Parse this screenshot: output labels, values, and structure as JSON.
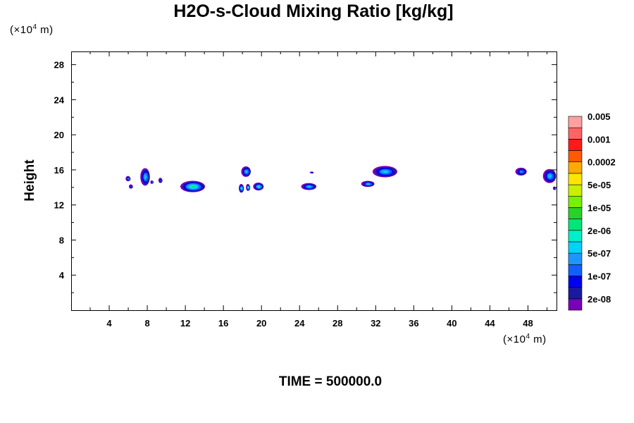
{
  "chart_data": {
    "type": "heatmap",
    "title": "H2O-s-Cloud Mixing Ratio [kg/kg]",
    "ylabel": "Height",
    "y_unit": "(×10⁴ m)",
    "x_unit": "(×10⁴ m)",
    "xlim": [
      0,
      51
    ],
    "ylim": [
      0,
      29.5
    ],
    "x_ticks": [
      4,
      8,
      12,
      16,
      20,
      24,
      28,
      32,
      36,
      40,
      44,
      48
    ],
    "y_ticks": [
      4,
      8,
      12,
      16,
      20,
      24,
      28
    ],
    "colorbar": {
      "levels": [
        "2e-08",
        "1e-07",
        "5e-07",
        "2e-06",
        "1e-05",
        "5e-05",
        "0.0002",
        "0.001",
        "0.005"
      ],
      "colors": [
        "#7a00b4",
        "#1a1aa0",
        "#0000f0",
        "#1060ff",
        "#1e96ff",
        "#00d2ff",
        "#00f0c8",
        "#00e678",
        "#28d228",
        "#78f000",
        "#c8f000",
        "#ffe600",
        "#ffaa00",
        "#ff5a00",
        "#ff1a1a",
        "#ff6464",
        "#ffa0a0"
      ]
    },
    "clouds": [
      {
        "x": 6.0,
        "y": 15.0,
        "w": 0.5,
        "h": 0.6,
        "peak": 4
      },
      {
        "x": 6.3,
        "y": 14.1,
        "w": 0.4,
        "h": 0.5,
        "peak": 3
      },
      {
        "x": 7.8,
        "y": 15.2,
        "w": 1.0,
        "h": 2.0,
        "peak": 5
      },
      {
        "x": 8.5,
        "y": 14.6,
        "w": 0.3,
        "h": 0.4,
        "peak": 3
      },
      {
        "x": 9.4,
        "y": 14.8,
        "w": 0.4,
        "h": 0.6,
        "peak": 3
      },
      {
        "x": 12.8,
        "y": 14.1,
        "w": 2.6,
        "h": 1.3,
        "peak": 7
      },
      {
        "x": 18.4,
        "y": 15.8,
        "w": 1.0,
        "h": 1.2,
        "peak": 5
      },
      {
        "x": 17.9,
        "y": 13.9,
        "w": 0.5,
        "h": 1.0,
        "peak": 6
      },
      {
        "x": 18.6,
        "y": 14.0,
        "w": 0.4,
        "h": 0.8,
        "peak": 6
      },
      {
        "x": 19.7,
        "y": 14.1,
        "w": 1.1,
        "h": 0.9,
        "peak": 6
      },
      {
        "x": 25.0,
        "y": 14.1,
        "w": 1.6,
        "h": 0.8,
        "peak": 5
      },
      {
        "x": 25.3,
        "y": 15.7,
        "w": 0.4,
        "h": 0.2,
        "peak": 2
      },
      {
        "x": 31.2,
        "y": 14.4,
        "w": 1.4,
        "h": 0.7,
        "peak": 5
      },
      {
        "x": 33.0,
        "y": 15.8,
        "w": 2.6,
        "h": 1.3,
        "peak": 5
      },
      {
        "x": 47.3,
        "y": 15.8,
        "w": 1.2,
        "h": 0.9,
        "peak": 4
      },
      {
        "x": 50.3,
        "y": 15.3,
        "w": 1.4,
        "h": 1.6,
        "peak": 5
      },
      {
        "x": 50.8,
        "y": 13.9,
        "w": 0.3,
        "h": 0.4,
        "peak": 3
      }
    ]
  },
  "footer": {
    "time_label": "TIME = 500000.0"
  }
}
